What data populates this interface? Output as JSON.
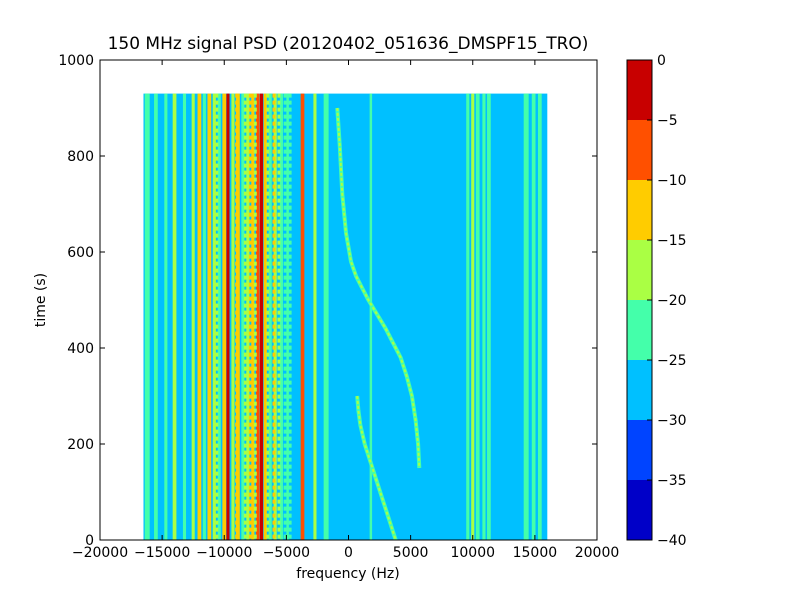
{
  "chart_data": {
    "type": "heatmap",
    "title": "150 MHz signal PSD (20120402_051636_DMSPF15_TRO)",
    "xlabel": "frequency (Hz)",
    "ylabel": "time (s)",
    "xlim": [
      -20000,
      20000
    ],
    "ylim": [
      0,
      1000
    ],
    "x_ticks": [
      -20000,
      -15000,
      -10000,
      -5000,
      0,
      5000,
      10000,
      15000,
      20000
    ],
    "x_tick_labels": [
      "−20000",
      "−15000",
      "−10000",
      "−5000",
      "0",
      "5000",
      "10000",
      "15000",
      "20000"
    ],
    "y_ticks": [
      0,
      200,
      400,
      600,
      800,
      1000
    ],
    "y_tick_labels": [
      "0",
      "200",
      "400",
      "600",
      "800",
      "1000"
    ],
    "data_extent": {
      "x": [
        -16500,
        16000
      ],
      "t": [
        0,
        930
      ]
    },
    "background_level": -27.5,
    "colorbar": {
      "range": [
        -40,
        0
      ],
      "ticks": [
        0,
        -5,
        -10,
        -15,
        -20,
        -25,
        -30,
        -35,
        -40
      ],
      "tick_labels": [
        "0",
        "−5",
        "−10",
        "−15",
        "−20",
        "−25",
        "−30",
        "−35",
        "−40"
      ],
      "levels": [
        {
          "range": [
            -40,
            -35
          ],
          "color": "#0000c8"
        },
        {
          "range": [
            -35,
            -30
          ],
          "color": "#0044ff"
        },
        {
          "range": [
            -30,
            -25
          ],
          "color": "#00c0ff"
        },
        {
          "range": [
            -25,
            -20
          ],
          "color": "#44ffaa"
        },
        {
          "range": [
            -20,
            -15
          ],
          "color": "#aaff44"
        },
        {
          "range": [
            -15,
            -10
          ],
          "color": "#ffcc00"
        },
        {
          "range": [
            -10,
            -5
          ],
          "color": "#ff5000"
        },
        {
          "range": [
            -5,
            0
          ],
          "color": "#c80000"
        }
      ]
    },
    "vertical_bands": [
      {
        "x": -16200,
        "width": 400,
        "level": -22.5
      },
      {
        "x": -15500,
        "width": 300,
        "level": -22.5
      },
      {
        "x": -14700,
        "width": 250,
        "level": -22.5
      },
      {
        "x": -14000,
        "width": 300,
        "level": -17.5
      },
      {
        "x": -13200,
        "width": 250,
        "level": -22.5
      },
      {
        "x": -12500,
        "width": 250,
        "level": -17.5
      },
      {
        "x": -12000,
        "width": 300,
        "level": -12.5
      },
      {
        "x": -11600,
        "width": 250,
        "level": -22.5
      },
      {
        "x": -11200,
        "width": 300,
        "level": -12.5
      },
      {
        "x": -10800,
        "width": 250,
        "level": -17.5
      },
      {
        "x": -10400,
        "width": 250,
        "level": -22.5
      },
      {
        "x": -10000,
        "width": 300,
        "level": -12.5
      },
      {
        "x": -9700,
        "width": 250,
        "level": -2.5
      },
      {
        "x": -9300,
        "width": 250,
        "level": -17.5
      },
      {
        "x": -8900,
        "width": 300,
        "level": -12.5
      },
      {
        "x": -8500,
        "width": 250,
        "level": -22.5
      },
      {
        "x": -8100,
        "width": 250,
        "level": -17.5
      },
      {
        "x": -7700,
        "width": 250,
        "level": -12.5
      },
      {
        "x": -7300,
        "width": 300,
        "level": -7.5
      },
      {
        "x": -7000,
        "width": 250,
        "level": -2.5
      },
      {
        "x": -6700,
        "width": 250,
        "level": -12.5
      },
      {
        "x": -6300,
        "width": 250,
        "level": -22.5
      },
      {
        "x": -5900,
        "width": 250,
        "level": -17.5
      },
      {
        "x": -5400,
        "width": 250,
        "level": -22.5
      },
      {
        "x": -4900,
        "width": 200,
        "level": -22.5
      },
      {
        "x": -3700,
        "width": 300,
        "level": -7.5
      },
      {
        "x": -2700,
        "width": 250,
        "level": -17.5
      },
      {
        "x": -1800,
        "width": 400,
        "level": -22.5
      },
      {
        "x": 1800,
        "width": 200,
        "level": -22.5
      },
      {
        "x": 9600,
        "width": 250,
        "level": -22.5
      },
      {
        "x": 10000,
        "width": 250,
        "level": -17.5
      },
      {
        "x": 10400,
        "width": 300,
        "level": -22.5
      },
      {
        "x": 10900,
        "width": 250,
        "level": -22.5
      },
      {
        "x": 11300,
        "width": 300,
        "level": -22.5
      },
      {
        "x": 14300,
        "width": 400,
        "level": -22.5
      },
      {
        "x": 14900,
        "width": 300,
        "level": -22.5
      },
      {
        "x": 15400,
        "width": 300,
        "level": -22.5
      }
    ],
    "dotted_bands": [
      {
        "x": -10600,
        "level": -17.5
      },
      {
        "x": -9000,
        "level": -12.5
      },
      {
        "x": -8300,
        "level": -17.5
      },
      {
        "x": -7900,
        "level": -12.5
      },
      {
        "x": -7500,
        "level": -17.5
      },
      {
        "x": -6500,
        "level": -17.5
      },
      {
        "x": -6000,
        "level": -12.5
      },
      {
        "x": -5600,
        "level": -17.5
      },
      {
        "x": -5100,
        "level": -22.5
      },
      {
        "x": -4700,
        "level": -22.5
      }
    ],
    "traces": [
      {
        "level": -17.5,
        "points": [
          [
            -900,
            900
          ],
          [
            -700,
            820
          ],
          [
            -500,
            720
          ],
          [
            -200,
            640
          ],
          [
            200,
            580
          ],
          [
            600,
            550
          ],
          [
            1000,
            530
          ],
          [
            1600,
            500
          ],
          [
            2300,
            470
          ],
          [
            3000,
            440
          ],
          [
            3600,
            410
          ],
          [
            4200,
            380
          ],
          [
            4700,
            340
          ],
          [
            5100,
            300
          ],
          [
            5400,
            250
          ],
          [
            5600,
            200
          ],
          [
            5700,
            150
          ]
        ]
      },
      {
        "level": -17.5,
        "points": [
          [
            700,
            300
          ],
          [
            800,
            270
          ],
          [
            950,
            240
          ],
          [
            1300,
            200
          ],
          [
            1800,
            160
          ],
          [
            2300,
            120
          ],
          [
            2800,
            80
          ],
          [
            3300,
            40
          ],
          [
            3800,
            0
          ]
        ]
      }
    ]
  }
}
